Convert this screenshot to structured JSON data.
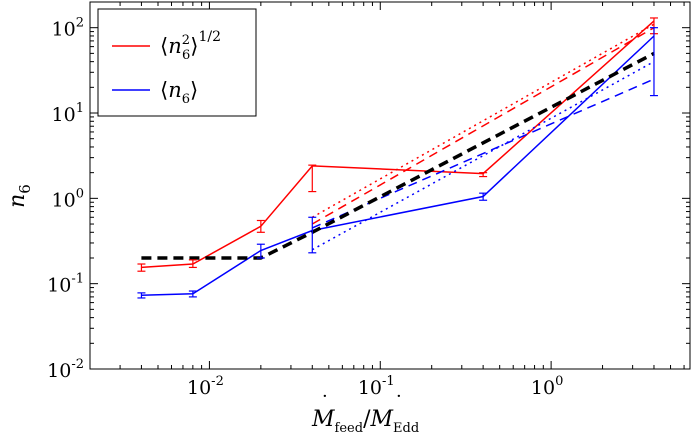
{
  "chart_data": {
    "type": "line",
    "title": "",
    "xlabel": "Ṁ_feed/Ṁ_Edd",
    "ylabel": "n_6",
    "xscale": "log",
    "yscale": "log",
    "xlim": [
      0.002,
      6.5
    ],
    "ylim": [
      0.01,
      200
    ],
    "x_ticks": [
      {
        "value": 0.01,
        "base": "10",
        "exp": "-2"
      },
      {
        "value": 0.1,
        "base": "10",
        "exp": "-1"
      },
      {
        "value": 1,
        "base": "10",
        "exp": "0"
      }
    ],
    "y_ticks": [
      {
        "value": 0.01,
        "base": "10",
        "exp": "-2"
      },
      {
        "value": 0.1,
        "base": "10",
        "exp": "-1"
      },
      {
        "value": 1,
        "base": "10",
        "exp": "0"
      },
      {
        "value": 10,
        "base": "10",
        "exp": "1"
      },
      {
        "value": 100,
        "base": "10",
        "exp": "2"
      }
    ],
    "legend": {
      "placement": "top-left",
      "entries": [
        {
          "label": "⟨n₆²⟩^(1/2)",
          "color": "#ff0000"
        },
        {
          "label": "⟨n₆⟩",
          "color": "#0000ff"
        }
      ]
    },
    "series": [
      {
        "name": "⟨n₆²⟩^(1/2)",
        "color": "#ff0000",
        "style": "solid",
        "x": [
          0.004,
          0.008,
          0.02,
          0.04,
          0.4,
          4
        ],
        "y": [
          0.155,
          0.17,
          0.47,
          2.4,
          1.95,
          120
        ],
        "yerr_low": [
          0.14,
          0.155,
          0.4,
          1.2,
          1.8,
          85
        ],
        "yerr_high": [
          0.17,
          0.19,
          0.55,
          2.45,
          2.0,
          130
        ]
      },
      {
        "name": "⟨n₆⟩",
        "color": "#0000ff",
        "style": "solid",
        "x": [
          0.004,
          0.008,
          0.02,
          0.04,
          0.4,
          4
        ],
        "y": [
          0.073,
          0.076,
          0.245,
          0.42,
          1.05,
          80
        ],
        "yerr_low": [
          0.068,
          0.07,
          0.2,
          0.23,
          0.95,
          16
        ],
        "yerr_high": [
          0.078,
          0.082,
          0.29,
          0.6,
          1.15,
          100
        ]
      },
      {
        "color": "#ff0000",
        "style": "dashed",
        "x": [
          0.04,
          4
        ],
        "y": [
          0.5,
          100
        ]
      },
      {
        "color": "#ff0000",
        "style": "dotted",
        "x": [
          0.04,
          4
        ],
        "y": [
          0.6,
          110
        ]
      },
      {
        "color": "#0000ff",
        "style": "dashed",
        "x": [
          0.04,
          4
        ],
        "y": [
          0.45,
          25
        ]
      },
      {
        "color": "#0000ff",
        "style": "dotted",
        "x": [
          0.04,
          4
        ],
        "y": [
          0.25,
          40
        ]
      },
      {
        "color": "#000000",
        "style": "thick-dashed",
        "x": [
          0.004,
          0.02,
          0.04,
          4
        ],
        "y": [
          0.2,
          0.2,
          0.4,
          50
        ]
      }
    ]
  }
}
